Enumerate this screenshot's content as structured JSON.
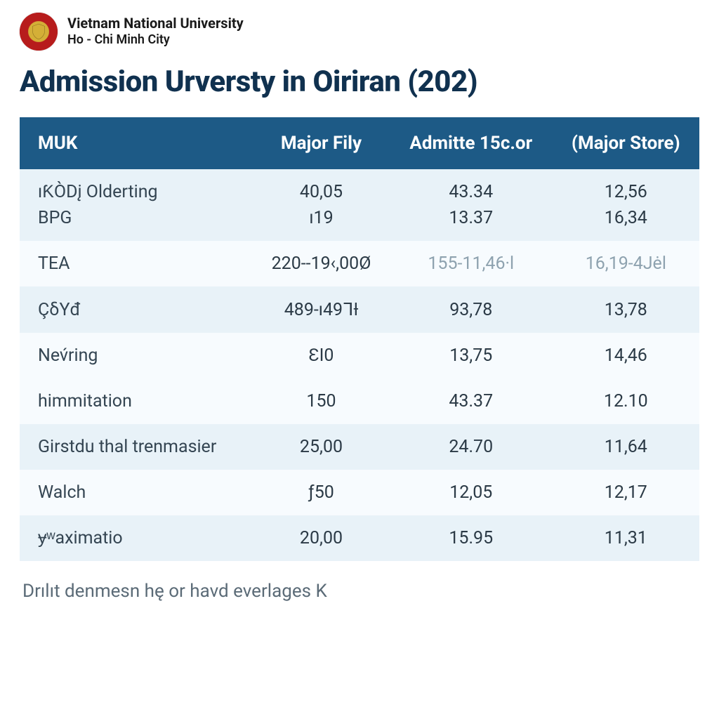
{
  "institution": {
    "name": "Vietnam National University",
    "city": "Ho - Chi Minh City"
  },
  "title": "Admission Urversty in Oiriran (202)",
  "table": {
    "type": "table",
    "header_bg": "#1d5a86",
    "header_text_color": "#ffffff",
    "band_colors": [
      "#e8f2f8",
      "#f7fbfe"
    ],
    "body_text_color": "#2b3a46",
    "faded_text_color": "#8ea2af",
    "columns": [
      "MUK",
      "Major Fily",
      "Admitte 15c.or",
      "(Major Store)"
    ],
    "rows": [
      {
        "band": "a",
        "cells": [
          "ıƘÒDį Olderting",
          "40,05",
          "43.34",
          "12,56"
        ]
      },
      {
        "band": "a",
        "cells": [
          "BPG",
          "ı19",
          "13.37",
          "16,34"
        ]
      },
      {
        "band": "b",
        "cells": [
          "TEA",
          "220--19‹,00Ø",
          "155-11,46·l",
          "16,19-4Jėl"
        ],
        "fadedCols": [
          2,
          3
        ]
      },
      {
        "band": "a",
        "cells": [
          "ÇδYđ",
          "489-ı49ᒣƗ",
          "93,78",
          "13,78"
        ]
      },
      {
        "band": "b",
        "cells": [
          "Nev́ring",
          "ƐI0",
          "13,75",
          "14,46"
        ]
      },
      {
        "band": "b",
        "cells": [
          "himmitation",
          "150",
          "43.37",
          "12.10"
        ]
      },
      {
        "band": "a",
        "cells": [
          "Girstdu thal trenmasier",
          "25,00",
          "24.70",
          "11,64"
        ]
      },
      {
        "band": "b",
        "cells": [
          "Walch",
          "ƒ50",
          "12,05",
          "12,17"
        ]
      },
      {
        "band": "a",
        "cells": [
          "ɏʷaximatio",
          "20,00",
          "15.95",
          "11,31"
        ]
      }
    ]
  },
  "footnote": "Drılıt denmesn hę or havd everlages K"
}
